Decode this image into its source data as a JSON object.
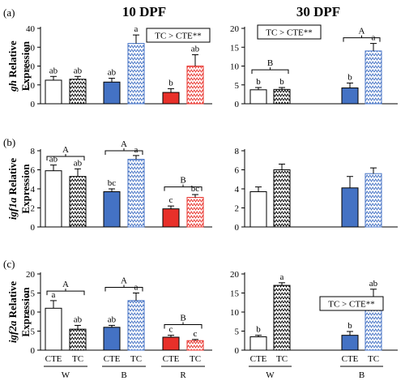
{
  "column_titles": [
    "10 DPF",
    "30 DPF"
  ],
  "row_tags": [
    "(a)",
    "(b)",
    "(c)"
  ],
  "colors": {
    "W": "#ffffff",
    "B": "#4472c4",
    "R": "#e8302a",
    "pattern_ink": "#000000",
    "pattern_B": "#4472c4",
    "pattern_R": "#e8302a"
  },
  "chart_data": [
    {
      "id": "a10",
      "type": "bar",
      "row": 0,
      "col": 0,
      "ylabel_gene": "gh",
      "ylabel_rest": "Relative",
      "ylabel_line2": "Expression",
      "ylim": [
        0,
        40
      ],
      "yticks": [
        0,
        10,
        20,
        30,
        40
      ],
      "series": [
        {
          "group": "W",
          "treat": "CTE",
          "value": 12.5,
          "err": 2,
          "letter": "ab"
        },
        {
          "group": "W",
          "treat": "TC",
          "value": 13,
          "err": 1.5,
          "letter": "ab"
        },
        {
          "group": "B",
          "treat": "CTE",
          "value": 11.5,
          "err": 2,
          "letter": "ab"
        },
        {
          "group": "B",
          "treat": "TC",
          "value": 32,
          "err": 4.5,
          "letter": "a"
        },
        {
          "group": "R",
          "treat": "CTE",
          "value": 6,
          "err": 2,
          "letter": "b"
        },
        {
          "group": "R",
          "treat": "TC",
          "value": 20,
          "err": 6,
          "letter": "ab"
        }
      ],
      "annotation_box": "TC > CTE**",
      "brackets": []
    },
    {
      "id": "a30",
      "type": "bar",
      "row": 0,
      "col": 1,
      "ylim": [
        0,
        20
      ],
      "yticks": [
        0,
        5,
        10,
        15,
        20
      ],
      "series": [
        {
          "group": "W",
          "treat": "CTE",
          "value": 3.7,
          "err": 0.6,
          "letter": "b"
        },
        {
          "group": "W",
          "treat": "TC",
          "value": 3.8,
          "err": 0.5,
          "letter": "b"
        },
        {
          "group": "B",
          "treat": "CTE",
          "value": 4.2,
          "err": 1.3,
          "letter": "b"
        },
        {
          "group": "B",
          "treat": "TC",
          "value": 14,
          "err": 2,
          "letter": "a"
        }
      ],
      "annotation_box": "TC > CTE**",
      "brackets": [
        {
          "from": 0,
          "to": 1,
          "y": 9,
          "label": "B"
        },
        {
          "from": 2,
          "to": 3,
          "y": 17.5,
          "label": "A"
        }
      ]
    },
    {
      "id": "b10",
      "type": "bar",
      "row": 1,
      "col": 0,
      "ylabel_gene": "igf1a",
      "ylabel_rest": "Relative",
      "ylabel_line2": "Expression",
      "ylim": [
        0,
        8
      ],
      "yticks": [
        0,
        2,
        4,
        6,
        8
      ],
      "series": [
        {
          "group": "W",
          "treat": "CTE",
          "value": 5.9,
          "err": 0.6,
          "letter": "ab"
        },
        {
          "group": "W",
          "treat": "TC",
          "value": 5.3,
          "err": 0.8,
          "letter": "ab"
        },
        {
          "group": "B",
          "treat": "CTE",
          "value": 3.7,
          "err": 0.3,
          "letter": "bc"
        },
        {
          "group": "B",
          "treat": "TC",
          "value": 7.1,
          "err": 0.4,
          "letter": "a"
        },
        {
          "group": "R",
          "treat": "CTE",
          "value": 1.9,
          "err": 0.3,
          "letter": "c"
        },
        {
          "group": "R",
          "treat": "TC",
          "value": 3.1,
          "err": 0.3,
          "letter": "bc"
        }
      ],
      "brackets": [
        {
          "from": 0,
          "to": 1,
          "y": 7.4,
          "label": "A"
        },
        {
          "from": 2,
          "to": 3,
          "y": 8.0,
          "label": "A"
        },
        {
          "from": 4,
          "to": 5,
          "y": 4.2,
          "label": "B"
        }
      ]
    },
    {
      "id": "b30",
      "type": "bar",
      "row": 1,
      "col": 1,
      "ylim": [
        0,
        8
      ],
      "yticks": [
        0,
        2,
        4,
        6,
        8
      ],
      "series": [
        {
          "group": "W",
          "treat": "CTE",
          "value": 3.7,
          "err": 0.5,
          "letter": ""
        },
        {
          "group": "W",
          "treat": "TC",
          "value": 6,
          "err": 0.6,
          "letter": ""
        },
        {
          "group": "B",
          "treat": "CTE",
          "value": 4.1,
          "err": 1.2,
          "letter": ""
        },
        {
          "group": "B",
          "treat": "TC",
          "value": 5.6,
          "err": 0.6,
          "letter": ""
        }
      ],
      "brackets": []
    },
    {
      "id": "c10",
      "type": "bar",
      "row": 2,
      "col": 0,
      "ylabel_gene": "igf2a",
      "ylabel_rest": "Relative",
      "ylabel_line2": "Expression",
      "ylim": [
        0,
        20
      ],
      "yticks": [
        0,
        5,
        10,
        15,
        20
      ],
      "series": [
        {
          "group": "W",
          "treat": "CTE",
          "value": 11,
          "err": 2,
          "letter": "a"
        },
        {
          "group": "W",
          "treat": "TC",
          "value": 5.5,
          "err": 1,
          "letter": "ab"
        },
        {
          "group": "B",
          "treat": "CTE",
          "value": 6,
          "err": 0.5,
          "letter": "ab"
        },
        {
          "group": "B",
          "treat": "TC",
          "value": 13,
          "err": 2,
          "letter": "a"
        },
        {
          "group": "R",
          "treat": "CTE",
          "value": 3.4,
          "err": 0.5,
          "letter": "c"
        },
        {
          "group": "R",
          "treat": "TC",
          "value": 2.5,
          "err": 0.3,
          "letter": "c"
        }
      ],
      "brackets": [
        {
          "from": 0,
          "to": 1,
          "y": 15.5,
          "label": "A"
        },
        {
          "from": 2,
          "to": 3,
          "y": 16.5,
          "label": "A"
        },
        {
          "from": 4,
          "to": 5,
          "y": 6.7,
          "label": "B"
        }
      ],
      "xlabels": [
        "CTE",
        "TC",
        "CTE",
        "TC",
        "CTE",
        "TC"
      ],
      "group_labels": [
        "W",
        "B",
        "R"
      ]
    },
    {
      "id": "c30",
      "type": "bar",
      "row": 2,
      "col": 1,
      "ylim": [
        0,
        20
      ],
      "yticks": [
        0,
        5,
        10,
        15,
        20
      ],
      "series": [
        {
          "group": "W",
          "treat": "CTE",
          "value": 3.5,
          "err": 0.4,
          "letter": "b"
        },
        {
          "group": "W",
          "treat": "TC",
          "value": 17,
          "err": 0.7,
          "letter": "a"
        },
        {
          "group": "B",
          "treat": "CTE",
          "value": 3.9,
          "err": 1,
          "letter": "b"
        },
        {
          "group": "B",
          "treat": "TC",
          "value": 13,
          "err": 3,
          "letter": "ab"
        }
      ],
      "annotation_box": "TC > CTE**",
      "brackets": [],
      "xlabels": [
        "CTE",
        "TC",
        "CTE",
        "TC"
      ],
      "group_labels": [
        "W",
        "B"
      ]
    }
  ]
}
